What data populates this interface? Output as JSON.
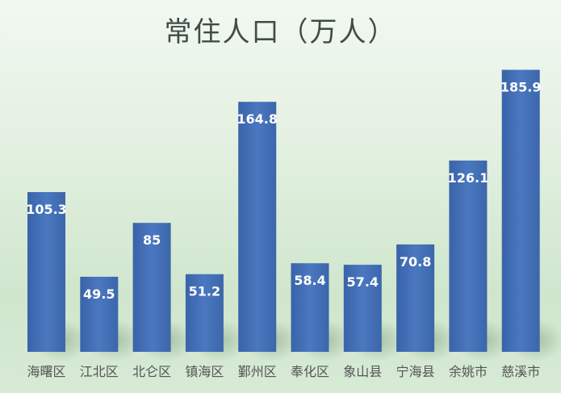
{
  "chart_data": {
    "type": "bar",
    "title": "常住人口（万人）",
    "categories": [
      "海曙区",
      "江北区",
      "北仑区",
      "镇海区",
      "鄞州区",
      "奉化区",
      "象山县",
      "宁海县",
      "余姚市",
      "慈溪市"
    ],
    "values": [
      105.3,
      49.5,
      85,
      51.2,
      164.8,
      58.4,
      57.4,
      70.8,
      126.1,
      185.9
    ],
    "value_labels": [
      "105.3",
      "49.5",
      "85",
      "51.2",
      "164.8",
      "58.4",
      "57.4",
      "70.8",
      "126.1",
      "185.9"
    ],
    "xlabel": "",
    "ylabel": "",
    "ylim": [
      0,
      200
    ],
    "grid": false,
    "legend": "none",
    "bar_color": "#4471b9",
    "label_color": "#ffffff",
    "category_label_color": "#555555"
  }
}
